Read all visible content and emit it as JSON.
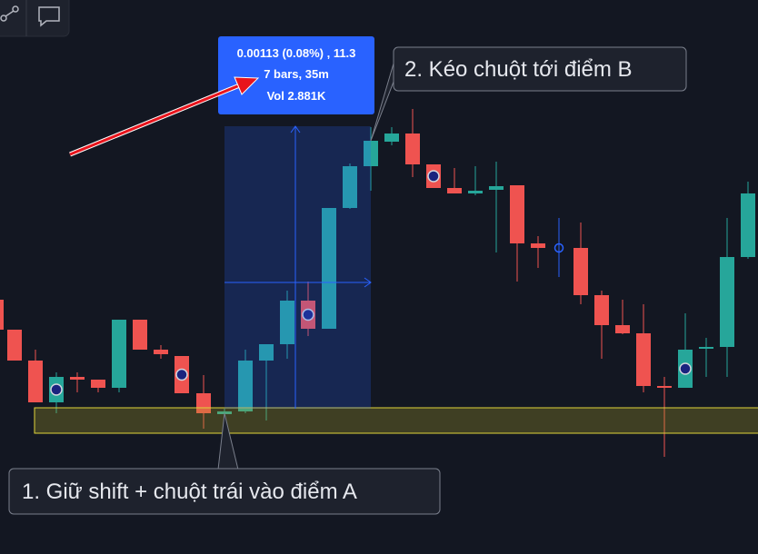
{
  "tooltip": {
    "line1": "0.00113 (0.08%) , 11.3",
    "line2": "7 bars, 35m",
    "line3": "Vol 2.881K"
  },
  "callouts": {
    "step_b": "2. Kéo chuột tới điểm B",
    "step_a": "1. Giữ shift + chuột trái vào điểm A"
  }
}
